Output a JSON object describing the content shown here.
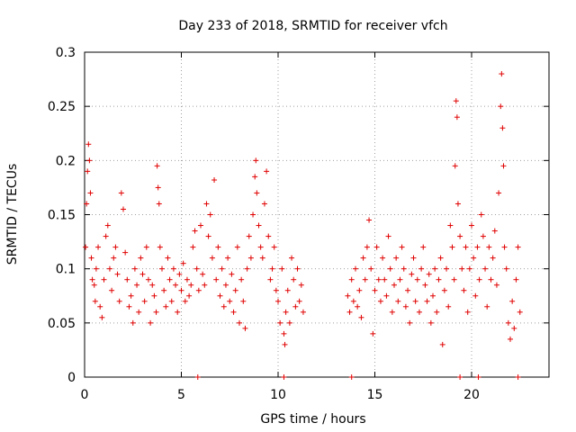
{
  "chart_data": {
    "type": "scatter",
    "title": "Day 233 of 2018, SRMTID for receiver vfch",
    "xlabel": "GPS time / hours",
    "ylabel": "SRMTID / TECUs",
    "xlim": [
      0,
      24
    ],
    "ylim": [
      0,
      0.3
    ],
    "grid": true,
    "marker": "+",
    "color": "#e00000",
    "x_ticks": [
      0,
      5,
      10,
      15,
      20
    ],
    "x_tick_labels": [
      "0",
      "5",
      "10",
      "15",
      "20"
    ],
    "y_ticks": [
      0,
      0.05,
      0.1,
      0.15,
      0.2,
      0.25,
      0.3
    ],
    "y_tick_labels": [
      "0",
      "0.05",
      "0.1",
      "0.15",
      "0.2",
      "0.25",
      "0.3"
    ],
    "series": [
      {
        "name": "SRMTID",
        "approximate": true,
        "points": [
          [
            0.05,
            0.12
          ],
          [
            0.1,
            0.16
          ],
          [
            0.15,
            0.19
          ],
          [
            0.2,
            0.215
          ],
          [
            0.25,
            0.2
          ],
          [
            0.3,
            0.17
          ],
          [
            0.35,
            0.11
          ],
          [
            0.4,
            0.09
          ],
          [
            0.5,
            0.085
          ],
          [
            0.55,
            0.07
          ],
          [
            0.6,
            0.1
          ],
          [
            0.7,
            0.12
          ],
          [
            0.8,
            0.065
          ],
          [
            0.9,
            0.055
          ],
          [
            1.0,
            0.09
          ],
          [
            1.1,
            0.13
          ],
          [
            1.2,
            0.14
          ],
          [
            1.3,
            0.1
          ],
          [
            1.4,
            0.08
          ],
          [
            1.5,
            0.11
          ],
          [
            1.6,
            0.12
          ],
          [
            1.7,
            0.095
          ],
          [
            1.8,
            0.07
          ],
          [
            1.9,
            0.17
          ],
          [
            2.0,
            0.155
          ],
          [
            2.1,
            0.115
          ],
          [
            2.2,
            0.09
          ],
          [
            2.3,
            0.065
          ],
          [
            2.4,
            0.075
          ],
          [
            2.5,
            0.05
          ],
          [
            2.6,
            0.1
          ],
          [
            2.7,
            0.085
          ],
          [
            2.8,
            0.06
          ],
          [
            2.9,
            0.11
          ],
          [
            3.0,
            0.095
          ],
          [
            3.1,
            0.07
          ],
          [
            3.2,
            0.12
          ],
          [
            3.3,
            0.09
          ],
          [
            3.4,
            0.05
          ],
          [
            3.5,
            0.085
          ],
          [
            3.6,
            0.075
          ],
          [
            3.7,
            0.06
          ],
          [
            3.75,
            0.195
          ],
          [
            3.8,
            0.175
          ],
          [
            3.85,
            0.16
          ],
          [
            3.9,
            0.12
          ],
          [
            4.0,
            0.1
          ],
          [
            4.1,
            0.08
          ],
          [
            4.2,
            0.065
          ],
          [
            4.3,
            0.11
          ],
          [
            4.4,
            0.09
          ],
          [
            4.5,
            0.07
          ],
          [
            4.6,
            0.1
          ],
          [
            4.7,
            0.085
          ],
          [
            4.8,
            0.06
          ],
          [
            4.9,
            0.095
          ],
          [
            5.0,
            0.08
          ],
          [
            5.1,
            0.105
          ],
          [
            5.2,
            0.07
          ],
          [
            5.3,
            0.09
          ],
          [
            5.4,
            0.075
          ],
          [
            5.5,
            0.085
          ],
          [
            5.6,
            0.12
          ],
          [
            5.7,
            0.135
          ],
          [
            5.8,
            0.1
          ],
          [
            5.9,
            0.08
          ],
          [
            6.0,
            0.14
          ],
          [
            6.1,
            0.095
          ],
          [
            6.2,
            0.085
          ],
          [
            6.3,
            0.16
          ],
          [
            6.4,
            0.13
          ],
          [
            6.5,
            0.15
          ],
          [
            6.6,
            0.11
          ],
          [
            6.7,
            0.182
          ],
          [
            6.8,
            0.09
          ],
          [
            6.9,
            0.12
          ],
          [
            7.0,
            0.075
          ],
          [
            7.1,
            0.1
          ],
          [
            7.2,
            0.065
          ],
          [
            7.3,
            0.085
          ],
          [
            7.4,
            0.11
          ],
          [
            7.5,
            0.07
          ],
          [
            7.6,
            0.095
          ],
          [
            7.7,
            0.06
          ],
          [
            7.8,
            0.08
          ],
          [
            7.9,
            0.12
          ],
          [
            8.0,
            0.05
          ],
          [
            8.1,
            0.09
          ],
          [
            8.2,
            0.07
          ],
          [
            8.3,
            0.045
          ],
          [
            8.4,
            0.1
          ],
          [
            8.5,
            0.13
          ],
          [
            8.6,
            0.11
          ],
          [
            8.7,
            0.15
          ],
          [
            8.8,
            0.185
          ],
          [
            8.85,
            0.2
          ],
          [
            8.9,
            0.17
          ],
          [
            9.0,
            0.14
          ],
          [
            9.1,
            0.12
          ],
          [
            9.2,
            0.11
          ],
          [
            9.3,
            0.16
          ],
          [
            9.4,
            0.19
          ],
          [
            9.5,
            0.13
          ],
          [
            9.6,
            0.09
          ],
          [
            9.7,
            0.1
          ],
          [
            9.8,
            0.12
          ],
          [
            9.9,
            0.08
          ],
          [
            10.0,
            0.07
          ],
          [
            10.1,
            0.05
          ],
          [
            10.2,
            0.1
          ],
          [
            10.3,
            0.04
          ],
          [
            10.35,
            0.03
          ],
          [
            10.4,
            0.06
          ],
          [
            10.5,
            0.08
          ],
          [
            10.6,
            0.05
          ],
          [
            10.7,
            0.11
          ],
          [
            10.8,
            0.09
          ],
          [
            10.9,
            0.065
          ],
          [
            11.0,
            0.1
          ],
          [
            11.1,
            0.07
          ],
          [
            11.2,
            0.085
          ],
          [
            11.3,
            0.06
          ],
          [
            13.6,
            0.075
          ],
          [
            13.7,
            0.06
          ],
          [
            13.8,
            0.09
          ],
          [
            13.9,
            0.07
          ],
          [
            14.0,
            0.1
          ],
          [
            14.1,
            0.065
          ],
          [
            14.2,
            0.08
          ],
          [
            14.3,
            0.055
          ],
          [
            14.4,
            0.11
          ],
          [
            14.5,
            0.09
          ],
          [
            14.6,
            0.12
          ],
          [
            14.7,
            0.145
          ],
          [
            14.8,
            0.1
          ],
          [
            14.9,
            0.04
          ],
          [
            15.0,
            0.08
          ],
          [
            15.1,
            0.12
          ],
          [
            15.2,
            0.09
          ],
          [
            15.3,
            0.07
          ],
          [
            15.4,
            0.11
          ],
          [
            15.5,
            0.09
          ],
          [
            15.6,
            0.075
          ],
          [
            15.7,
            0.13
          ],
          [
            15.8,
            0.1
          ],
          [
            15.9,
            0.06
          ],
          [
            16.0,
            0.085
          ],
          [
            16.1,
            0.11
          ],
          [
            16.2,
            0.07
          ],
          [
            16.3,
            0.09
          ],
          [
            16.4,
            0.12
          ],
          [
            16.5,
            0.1
          ],
          [
            16.6,
            0.065
          ],
          [
            16.7,
            0.08
          ],
          [
            16.8,
            0.05
          ],
          [
            16.9,
            0.095
          ],
          [
            17.0,
            0.11
          ],
          [
            17.1,
            0.07
          ],
          [
            17.2,
            0.09
          ],
          [
            17.3,
            0.06
          ],
          [
            17.4,
            0.1
          ],
          [
            17.5,
            0.12
          ],
          [
            17.6,
            0.085
          ],
          [
            17.7,
            0.07
          ],
          [
            17.8,
            0.095
          ],
          [
            17.9,
            0.05
          ],
          [
            18.0,
            0.075
          ],
          [
            18.1,
            0.1
          ],
          [
            18.2,
            0.06
          ],
          [
            18.3,
            0.09
          ],
          [
            18.4,
            0.11
          ],
          [
            18.5,
            0.03
          ],
          [
            18.6,
            0.08
          ],
          [
            18.7,
            0.1
          ],
          [
            18.8,
            0.065
          ],
          [
            18.9,
            0.14
          ],
          [
            19.0,
            0.12
          ],
          [
            19.1,
            0.09
          ],
          [
            19.15,
            0.195
          ],
          [
            19.2,
            0.255
          ],
          [
            19.25,
            0.24
          ],
          [
            19.3,
            0.16
          ],
          [
            19.4,
            0.13
          ],
          [
            19.5,
            0.1
          ],
          [
            19.6,
            0.08
          ],
          [
            19.7,
            0.12
          ],
          [
            19.8,
            0.06
          ],
          [
            19.9,
            0.1
          ],
          [
            20.0,
            0.14
          ],
          [
            20.1,
            0.11
          ],
          [
            20.2,
            0.075
          ],
          [
            20.3,
            0.12
          ],
          [
            20.4,
            0.09
          ],
          [
            20.5,
            0.15
          ],
          [
            20.6,
            0.13
          ],
          [
            20.7,
            0.1
          ],
          [
            20.8,
            0.065
          ],
          [
            20.9,
            0.12
          ],
          [
            21.0,
            0.09
          ],
          [
            21.1,
            0.11
          ],
          [
            21.2,
            0.135
          ],
          [
            21.3,
            0.085
          ],
          [
            21.4,
            0.17
          ],
          [
            21.5,
            0.25
          ],
          [
            21.55,
            0.28
          ],
          [
            21.6,
            0.23
          ],
          [
            21.65,
            0.195
          ],
          [
            21.7,
            0.12
          ],
          [
            21.8,
            0.1
          ],
          [
            21.9,
            0.05
          ],
          [
            22.0,
            0.035
          ],
          [
            22.1,
            0.07
          ],
          [
            22.2,
            0.045
          ],
          [
            22.3,
            0.09
          ],
          [
            22.4,
            0.12
          ],
          [
            22.5,
            0.06
          ]
        ]
      }
    ],
    "zero_markers_x": [
      5.85,
      10.3,
      13.8,
      19.4,
      20.35,
      22.4
    ]
  }
}
